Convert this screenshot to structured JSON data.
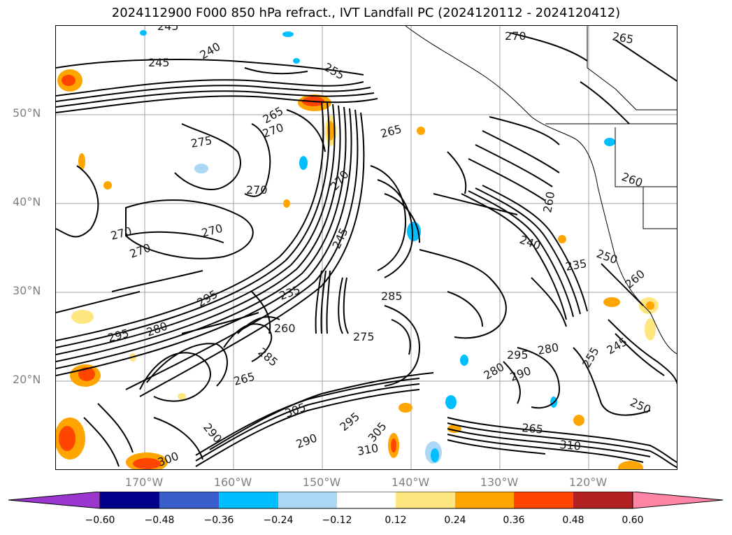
{
  "title": "2024112900 F000 850 hPa refract., IVT Landfall PC (2024120112 - 2024120412)",
  "lat_labels": [
    "50°N",
    "40°N",
    "30°N",
    "20°N"
  ],
  "lon_labels": [
    "170°W",
    "160°W",
    "150°W",
    "140°W",
    "130°W",
    "120°W"
  ],
  "colorbar": {
    "ticks": [
      "−0.60",
      "−0.48",
      "−0.36",
      "−0.24",
      "−0.12",
      "0.12",
      "0.24",
      "0.36",
      "0.48",
      "0.60"
    ],
    "colors": [
      "#9b36cf",
      "#00008b",
      "#3a5fcd",
      "#00bfff",
      "#add8f5",
      "#ffffff",
      "#ffe680",
      "#ffa500",
      "#ff4500",
      "#b22222",
      "#ff85a6"
    ]
  },
  "contour_labels": [
    "245",
    "240",
    "245",
    "270",
    "265",
    "255",
    "265",
    "275",
    "270",
    "270",
    "265",
    "260",
    "270",
    "270",
    "270",
    "270",
    "245",
    "260",
    "240",
    "235",
    "250",
    "260",
    "295",
    "285",
    "235",
    "275",
    "295",
    "280",
    "260",
    "285",
    "295",
    "280",
    "290",
    "280",
    "265",
    "310",
    "305",
    "290",
    "295",
    "305",
    "310",
    "250",
    "265",
    "290",
    "300",
    "255",
    "245"
  ],
  "contour_color": "#000000",
  "gridline_color": "#a0a0a0"
}
